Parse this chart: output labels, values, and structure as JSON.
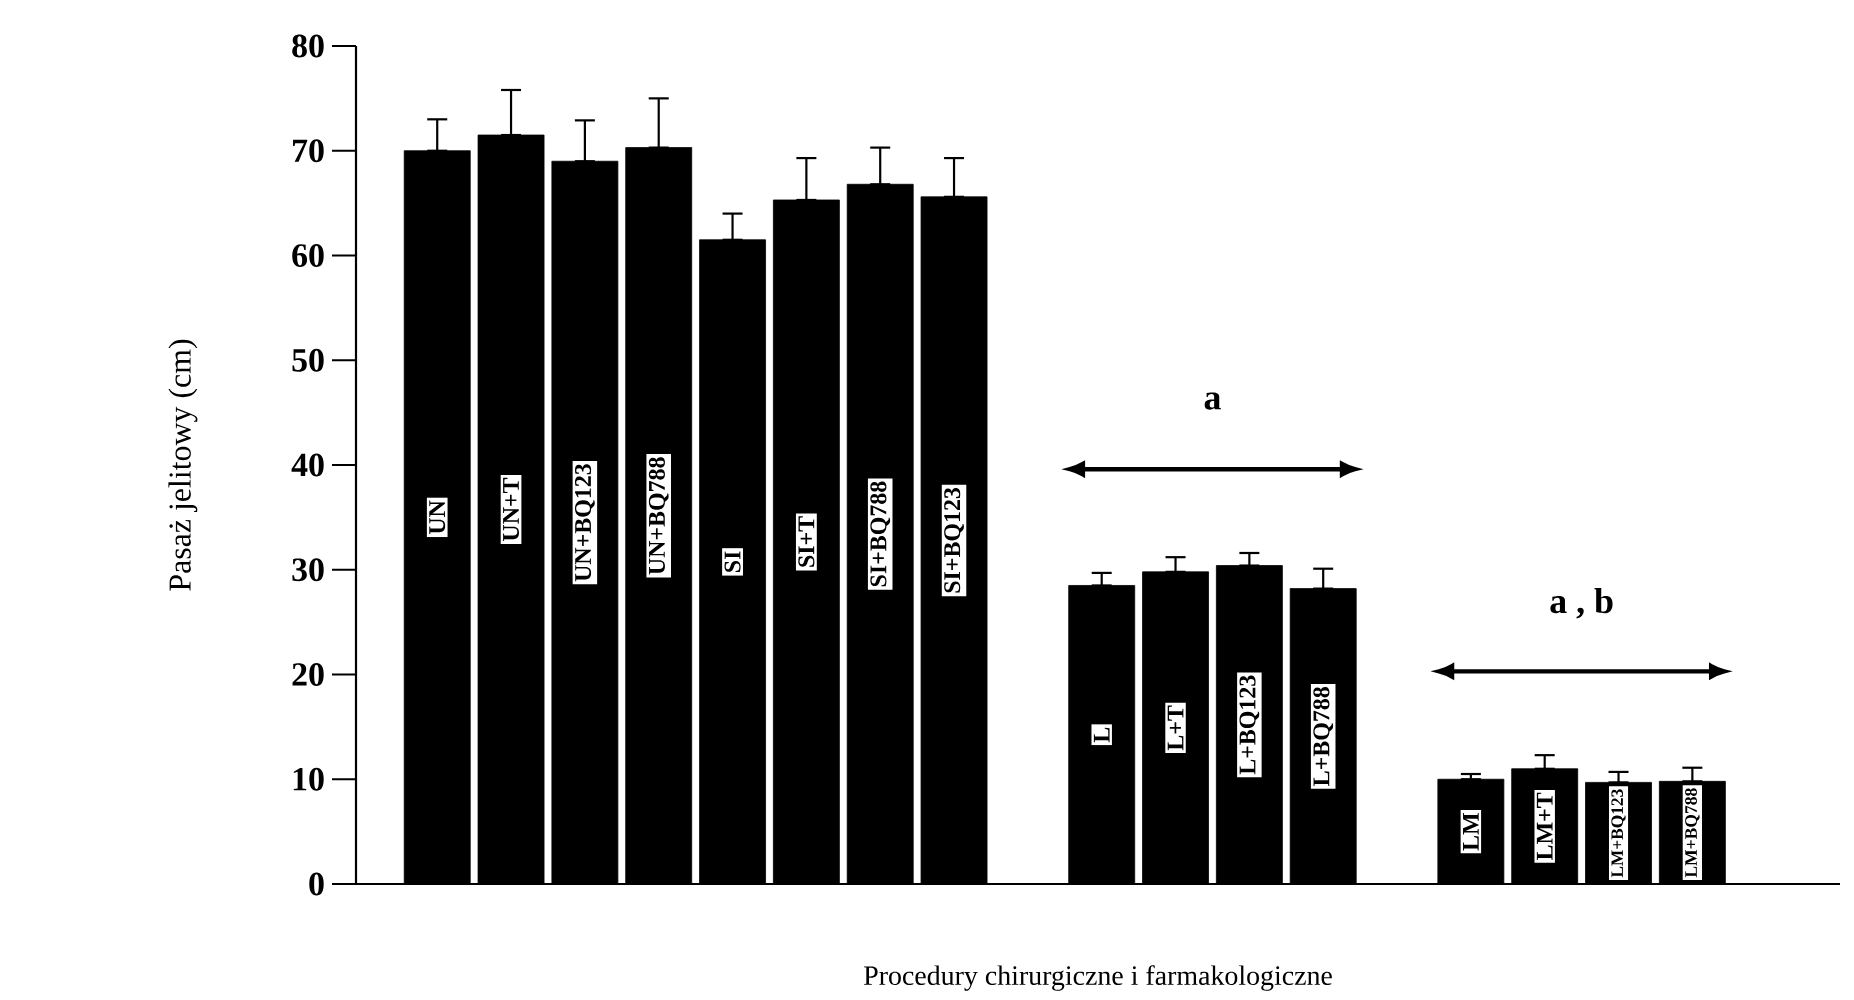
{
  "chart_data": {
    "type": "bar",
    "xlabel": "Procedury chirurgiczne i farmakologiczne",
    "ylabel": "Pasaż jelitowy (cm)",
    "categories": [
      "UN",
      "UN+T",
      "UN+BQ123",
      "UN+BQ788",
      "SI",
      "SI+T",
      "SI+BQ788",
      "SI+BQ123",
      null,
      "L",
      "L+T",
      "L+BQ123",
      "L+BQ788",
      null,
      "LM",
      "LM+T",
      "LM+BQ123",
      "LM+BQ788"
    ],
    "values": [
      70,
      71.5,
      69,
      70.3,
      61.5,
      65.3,
      66.8,
      65.6,
      null,
      28.5,
      29.8,
      30.4,
      28.2,
      null,
      10,
      11,
      9.7,
      9.8
    ],
    "errors": [
      [
        70,
        73
      ],
      [
        71.5,
        75.8
      ],
      [
        69,
        72.9
      ],
      [
        70.3,
        75
      ],
      [
        61.5,
        64
      ],
      [
        65.3,
        69.3
      ],
      [
        66.8,
        70.3
      ],
      [
        65.6,
        69.3
      ],
      null,
      [
        28.5,
        29.7
      ],
      [
        29.8,
        31.2
      ],
      [
        30.4,
        31.6
      ],
      [
        28.2,
        30.1
      ],
      null,
      [
        10,
        10.5
      ],
      [
        11,
        12.3
      ],
      [
        9.7,
        10.7
      ],
      [
        9.8,
        11.1
      ]
    ],
    "color": "#000000",
    "ylim": [
      0,
      80
    ],
    "yticks": [
      0,
      10,
      20,
      30,
      40,
      50,
      60,
      70,
      80
    ],
    "annotations": [
      "a",
      "a , b"
    ]
  }
}
